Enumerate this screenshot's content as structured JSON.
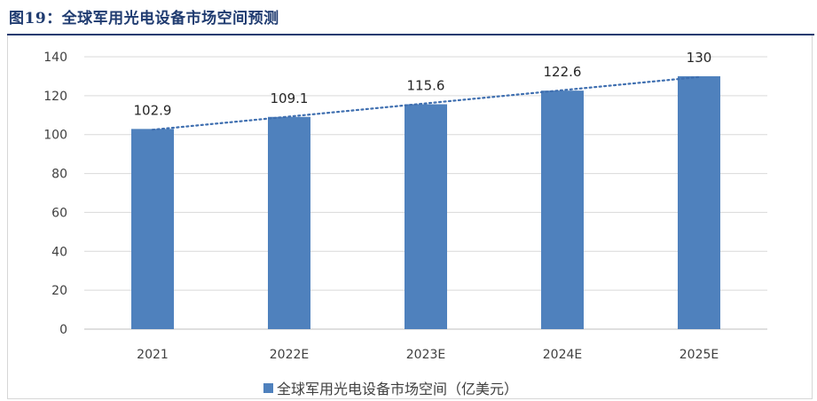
{
  "figure": {
    "title": "图19：全球军用光电设备市场空间预测"
  },
  "colors": {
    "title": "#1f3b70",
    "bar": "#4f81bd",
    "trendline": "#3f6fb0",
    "grid": "#d9d9d9",
    "axis": "#bfbfbf"
  },
  "legend": {
    "label": "全球军用光电设备市场空间（亿美元）",
    "position": "bottom"
  },
  "chart_data": {
    "type": "bar",
    "categories": [
      "2021",
      "2022E",
      "2023E",
      "2024E",
      "2025E"
    ],
    "series": [
      {
        "name": "全球军用光电设备市场空间（亿美元）",
        "values": [
          102.9,
          109.1,
          115.6,
          122.6,
          130
        ],
        "labels": [
          "102.9",
          "109.1",
          "115.6",
          "122.6",
          "130"
        ]
      }
    ],
    "trendline": "linear-dotted",
    "ylim": [
      0,
      140
    ],
    "yticks": [
      0,
      20,
      40,
      60,
      80,
      100,
      120,
      140
    ],
    "grid": true,
    "legend_position": "bottom"
  }
}
